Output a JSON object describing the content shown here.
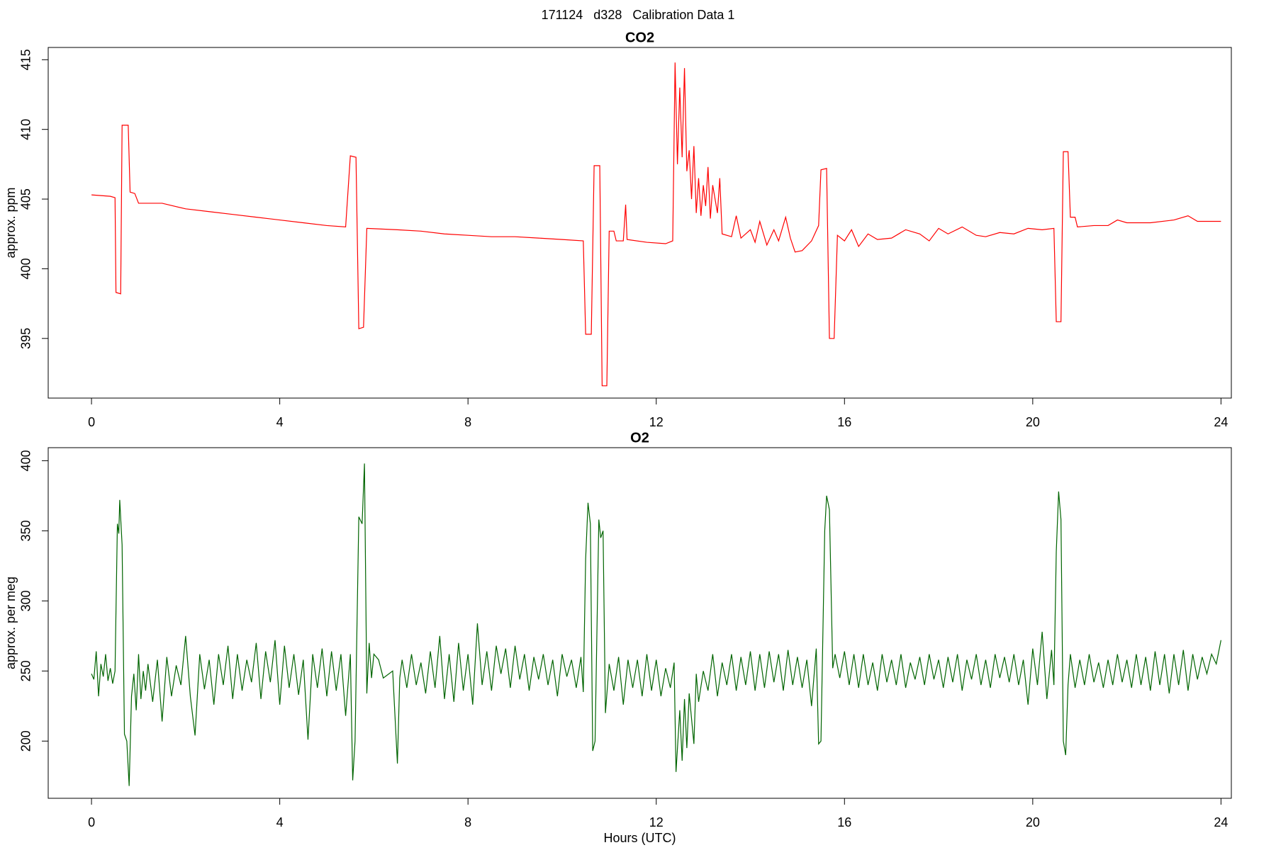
{
  "title": "171124   d328   Calibration Data 1",
  "chart_data": [
    {
      "type": "line",
      "title": "CO2",
      "y_label": "approx. ppm",
      "x": [
        0,
        0.4,
        0.5,
        0.52,
        0.62,
        0.65,
        0.78,
        0.82,
        0.92,
        1.0,
        1.5,
        2,
        2.5,
        3,
        3.5,
        4,
        4.5,
        5,
        5.4,
        5.5,
        5.62,
        5.68,
        5.78,
        5.85,
        6.5,
        7,
        7.5,
        8,
        8.5,
        9,
        9.5,
        10,
        10.45,
        10.5,
        10.62,
        10.68,
        10.8,
        10.85,
        10.95,
        11.0,
        11.1,
        11.15,
        11.3,
        11.35,
        11.38,
        11.8,
        12.2,
        12.35,
        12.4,
        12.45,
        12.5,
        12.55,
        12.6,
        12.65,
        12.7,
        12.75,
        12.8,
        12.85,
        12.9,
        12.95,
        13.0,
        13.05,
        13.1,
        13.15,
        13.2,
        13.3,
        13.35,
        13.4,
        13.6,
        13.7,
        13.8,
        14.0,
        14.1,
        14.2,
        14.35,
        14.5,
        14.6,
        14.75,
        14.85,
        14.95,
        15.1,
        15.3,
        15.45,
        15.5,
        15.62,
        15.68,
        15.78,
        15.85,
        16.0,
        16.15,
        16.3,
        16.5,
        16.7,
        17,
        17.3,
        17.6,
        17.8,
        18,
        18.2,
        18.5,
        18.8,
        19,
        19.3,
        19.6,
        19.9,
        20.2,
        20.45,
        20.5,
        20.6,
        20.65,
        20.75,
        20.8,
        20.9,
        20.95,
        21.3,
        21.6,
        21.8,
        22,
        22.5,
        23,
        23.3,
        23.5,
        24
      ],
      "series": [
        {
          "color": "#ff0000",
          "values": [
            405.3,
            405.2,
            405.1,
            398.3,
            398.2,
            410.3,
            410.3,
            405.5,
            405.4,
            404.7,
            404.7,
            404.3,
            404.1,
            403.9,
            403.7,
            403.5,
            403.3,
            403.1,
            403.0,
            408.1,
            408.0,
            395.7,
            395.8,
            402.9,
            402.8,
            402.7,
            402.5,
            402.4,
            402.3,
            402.3,
            402.2,
            402.1,
            402.0,
            395.3,
            395.3,
            407.4,
            407.4,
            391.6,
            391.6,
            402.7,
            402.7,
            402.0,
            402.0,
            404.6,
            402.1,
            401.9,
            401.8,
            402.0,
            414.8,
            407.5,
            413.0,
            408.0,
            414.4,
            407.0,
            408.5,
            405.0,
            408.8,
            404.0,
            406.5,
            403.8,
            406.0,
            404.5,
            407.3,
            403.6,
            406.0,
            404.0,
            406.5,
            402.5,
            402.3,
            403.8,
            402.2,
            402.8,
            401.9,
            403.4,
            401.7,
            402.8,
            402.0,
            403.7,
            402.2,
            401.2,
            401.3,
            402.0,
            403.1,
            407.1,
            407.2,
            395.0,
            395.0,
            402.4,
            402.0,
            402.8,
            401.6,
            402.5,
            402.1,
            402.2,
            402.8,
            402.5,
            402.0,
            402.9,
            402.5,
            403.0,
            402.4,
            402.3,
            402.6,
            402.5,
            402.9,
            402.8,
            402.9,
            396.2,
            396.2,
            408.4,
            408.4,
            403.7,
            403.7,
            403.0,
            403.1,
            403.1,
            403.5,
            403.3,
            403.3,
            403.5,
            403.8,
            403.4,
            403.4
          ]
        }
      ],
      "xlim": [
        -0.92,
        24.22
      ],
      "xticks": [
        0,
        4,
        8,
        12,
        16,
        20,
        24
      ],
      "ylim": [
        390.72,
        415.88
      ],
      "yticks": [
        395,
        400,
        405,
        410,
        415
      ]
    },
    {
      "type": "line",
      "title": "O2",
      "y_label": "approx. per meg",
      "x_label": "Hours (UTC)",
      "x": [
        0,
        0.05,
        0.1,
        0.15,
        0.2,
        0.25,
        0.3,
        0.35,
        0.4,
        0.45,
        0.5,
        0.55,
        0.58,
        0.6,
        0.65,
        0.7,
        0.75,
        0.8,
        0.85,
        0.9,
        0.95,
        1.0,
        1.05,
        1.1,
        1.15,
        1.2,
        1.3,
        1.4,
        1.5,
        1.6,
        1.7,
        1.8,
        1.9,
        2.0,
        2.1,
        2.2,
        2.3,
        2.4,
        2.5,
        2.6,
        2.7,
        2.8,
        2.9,
        3.0,
        3.1,
        3.2,
        3.3,
        3.4,
        3.5,
        3.6,
        3.7,
        3.8,
        3.9,
        4.0,
        4.1,
        4.2,
        4.3,
        4.4,
        4.5,
        4.6,
        4.7,
        4.8,
        4.9,
        5.0,
        5.1,
        5.2,
        5.3,
        5.4,
        5.5,
        5.55,
        5.6,
        5.68,
        5.75,
        5.8,
        5.85,
        5.9,
        5.95,
        6.0,
        6.1,
        6.2,
        6.4,
        6.5,
        6.55,
        6.6,
        6.7,
        6.8,
        6.9,
        7.0,
        7.1,
        7.2,
        7.3,
        7.4,
        7.5,
        7.6,
        7.7,
        7.8,
        7.9,
        8.0,
        8.1,
        8.2,
        8.3,
        8.4,
        8.5,
        8.6,
        8.7,
        8.8,
        8.9,
        9.0,
        9.1,
        9.2,
        9.3,
        9.4,
        9.5,
        9.6,
        9.7,
        9.8,
        9.9,
        10.0,
        10.1,
        10.2,
        10.3,
        10.4,
        10.45,
        10.5,
        10.55,
        10.6,
        10.65,
        10.7,
        10.78,
        10.82,
        10.87,
        10.92,
        11.0,
        11.1,
        11.2,
        11.3,
        11.4,
        11.5,
        11.6,
        11.7,
        11.8,
        11.9,
        12.0,
        12.1,
        12.2,
        12.3,
        12.38,
        12.42,
        12.5,
        12.55,
        12.6,
        12.65,
        12.7,
        12.8,
        12.85,
        12.9,
        13.0,
        13.1,
        13.2,
        13.3,
        13.4,
        13.5,
        13.6,
        13.7,
        13.8,
        13.9,
        14.0,
        14.1,
        14.2,
        14.3,
        14.4,
        14.5,
        14.6,
        14.7,
        14.8,
        14.9,
        15.0,
        15.1,
        15.2,
        15.3,
        15.4,
        15.45,
        15.5,
        15.58,
        15.62,
        15.68,
        15.75,
        15.8,
        15.9,
        16.0,
        16.1,
        16.2,
        16.3,
        16.4,
        16.5,
        16.6,
        16.7,
        16.8,
        16.9,
        17.0,
        17.1,
        17.2,
        17.3,
        17.4,
        17.5,
        17.6,
        17.7,
        17.8,
        17.9,
        18.0,
        18.1,
        18.2,
        18.3,
        18.4,
        18.5,
        18.6,
        18.7,
        18.8,
        18.9,
        19.0,
        19.1,
        19.2,
        19.3,
        19.4,
        19.5,
        19.6,
        19.7,
        19.8,
        19.9,
        20.0,
        20.1,
        20.2,
        20.3,
        20.4,
        20.45,
        20.5,
        20.55,
        20.6,
        20.65,
        20.7,
        20.75,
        20.8,
        20.9,
        21.0,
        21.1,
        21.2,
        21.3,
        21.4,
        21.5,
        21.6,
        21.7,
        21.8,
        21.9,
        22.0,
        22.1,
        22.2,
        22.3,
        22.4,
        22.5,
        22.6,
        22.7,
        22.8,
        22.9,
        23.0,
        23.1,
        23.2,
        23.3,
        23.4,
        23.5,
        23.6,
        23.7,
        23.8,
        23.9,
        24.0
      ],
      "series": [
        {
          "color": "#006400",
          "values": [
            248,
            244,
            264,
            232,
            255,
            246,
            262,
            243,
            252,
            241,
            250,
            355,
            348,
            372,
            340,
            205,
            200,
            168,
            232,
            248,
            222,
            262,
            230,
            250,
            236,
            255,
            228,
            258,
            214,
            260,
            232,
            254,
            240,
            275,
            232,
            204,
            262,
            237,
            258,
            226,
            262,
            240,
            268,
            230,
            262,
            236,
            258,
            242,
            270,
            230,
            264,
            242,
            272,
            226,
            268,
            238,
            262,
            233,
            258,
            201,
            262,
            238,
            266,
            232,
            264,
            236,
            262,
            218,
            262,
            172,
            200,
            360,
            355,
            398,
            234,
            270,
            245,
            262,
            258,
            245,
            250,
            184,
            245,
            258,
            238,
            262,
            240,
            256,
            234,
            264,
            238,
            275,
            230,
            262,
            228,
            270,
            236,
            262,
            226,
            284,
            240,
            264,
            236,
            268,
            248,
            266,
            238,
            268,
            244,
            262,
            236,
            260,
            244,
            262,
            240,
            258,
            232,
            262,
            246,
            258,
            238,
            260,
            235,
            330,
            370,
            355,
            193,
            200,
            358,
            345,
            350,
            220,
            255,
            236,
            260,
            226,
            258,
            238,
            258,
            232,
            262,
            236,
            258,
            232,
            252,
            238,
            256,
            178,
            222,
            186,
            230,
            195,
            234,
            198,
            248,
            228,
            250,
            236,
            262,
            232,
            256,
            240,
            262,
            236,
            260,
            240,
            264,
            236,
            262,
            238,
            264,
            242,
            262,
            236,
            265,
            240,
            260,
            238,
            258,
            225,
            266,
            198,
            200,
            350,
            375,
            365,
            252,
            262,
            245,
            264,
            240,
            262,
            238,
            262,
            240,
            256,
            236,
            262,
            242,
            258,
            240,
            262,
            238,
            256,
            244,
            260,
            240,
            262,
            244,
            258,
            238,
            260,
            242,
            262,
            236,
            258,
            244,
            262,
            240,
            258,
            238,
            262,
            245,
            260,
            242,
            262,
            240,
            258,
            226,
            266,
            240,
            278,
            230,
            265,
            240,
            335,
            378,
            358,
            200,
            190,
            240,
            262,
            238,
            258,
            240,
            262,
            242,
            256,
            238,
            258,
            240,
            262,
            242,
            258,
            238,
            262,
            240,
            260,
            236,
            264,
            240,
            262,
            234,
            262,
            240,
            265,
            236,
            262,
            244,
            260,
            248,
            262,
            255,
            272
          ]
        }
      ],
      "xlim": [
        -0.92,
        24.22
      ],
      "xticks": [
        0,
        4,
        8,
        12,
        16,
        20,
        24
      ],
      "ylim": [
        159.2,
        409.3
      ],
      "yticks": [
        200,
        250,
        300,
        350,
        400
      ]
    }
  ]
}
